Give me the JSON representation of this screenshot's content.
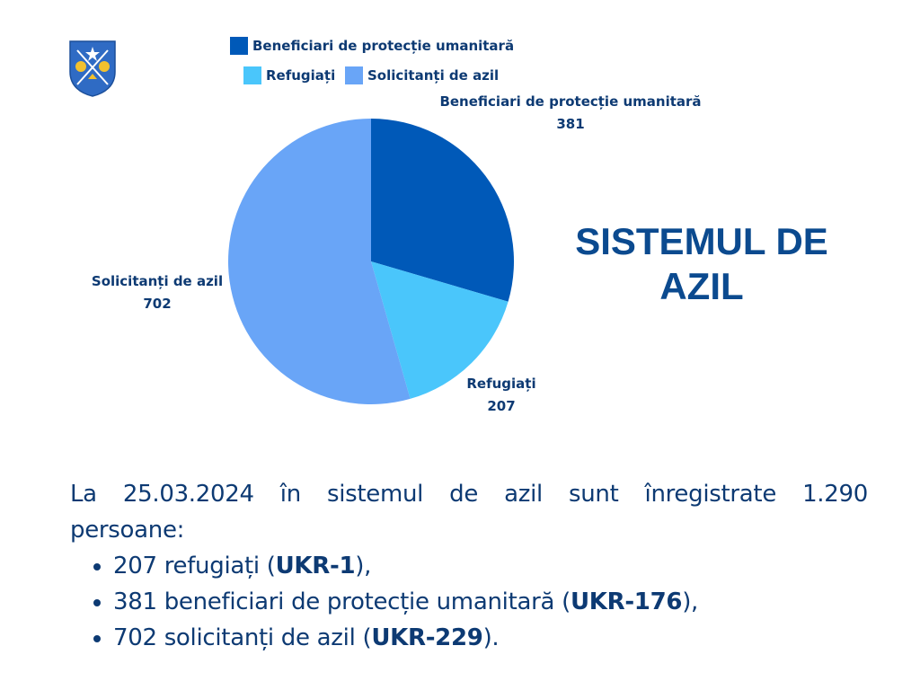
{
  "logo": {
    "icon": "coat-of-arms-icon",
    "colors": {
      "shield": "#2f6bc4",
      "accent": "#f2c12e",
      "trim": "#ffffff"
    }
  },
  "chart_data": {
    "type": "pie",
    "title": "",
    "legend": [
      {
        "name": "Beneficiari de protecție umanitară",
        "color": "#0059b8"
      },
      {
        "name": "Refugiați",
        "color": "#4ac6fb"
      },
      {
        "name": "Solicitanți de azil",
        "color": "#69a5f7"
      }
    ],
    "legend_position": "top",
    "slices": [
      {
        "label": "Beneficiari de protecție umanitară",
        "value": 381,
        "color": "#0059b8"
      },
      {
        "label": "Refugiați",
        "value": 207,
        "color": "#4ac6fb"
      },
      {
        "label": "Solicitanți de azil",
        "value": 702,
        "color": "#69a5f7"
      }
    ]
  },
  "heading": {
    "line1": "SISTEMUL DE",
    "line2": "AZIL"
  },
  "summary": {
    "intro_words": [
      "La",
      "25.03.2024",
      "în",
      "sistemul",
      "de",
      "azil",
      "sunt",
      "înregistrate",
      "1.290"
    ],
    "intro_rest": "persoane:",
    "items": [
      {
        "pre": "207 refugiați (",
        "bold": "UKR-1",
        "post": "),"
      },
      {
        "pre": "381 beneficiari de protecție umanitară (",
        "bold": "UKR-176",
        "post": "),"
      },
      {
        "pre": "702 solicitanți de azil (",
        "bold": "UKR-229",
        "post": ")."
      }
    ]
  }
}
